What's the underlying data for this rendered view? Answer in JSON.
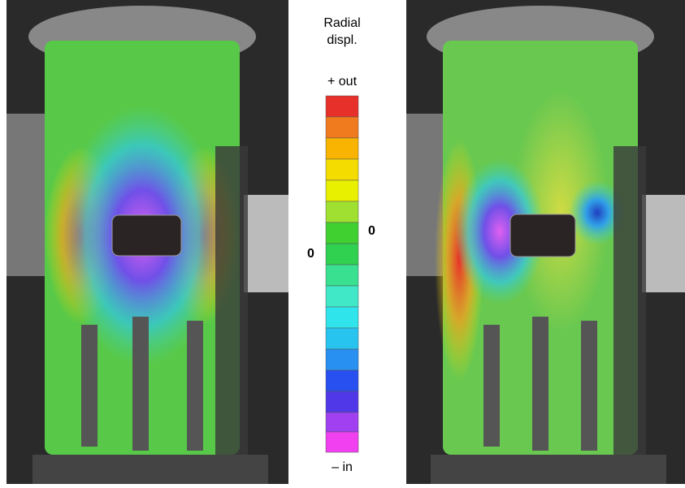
{
  "colorbar": {
    "title": [
      "Radial",
      "displ."
    ],
    "top_label": "+ out",
    "bottom_label": "– in",
    "zero_labels": [
      "0",
      "0"
    ]
  }
}
